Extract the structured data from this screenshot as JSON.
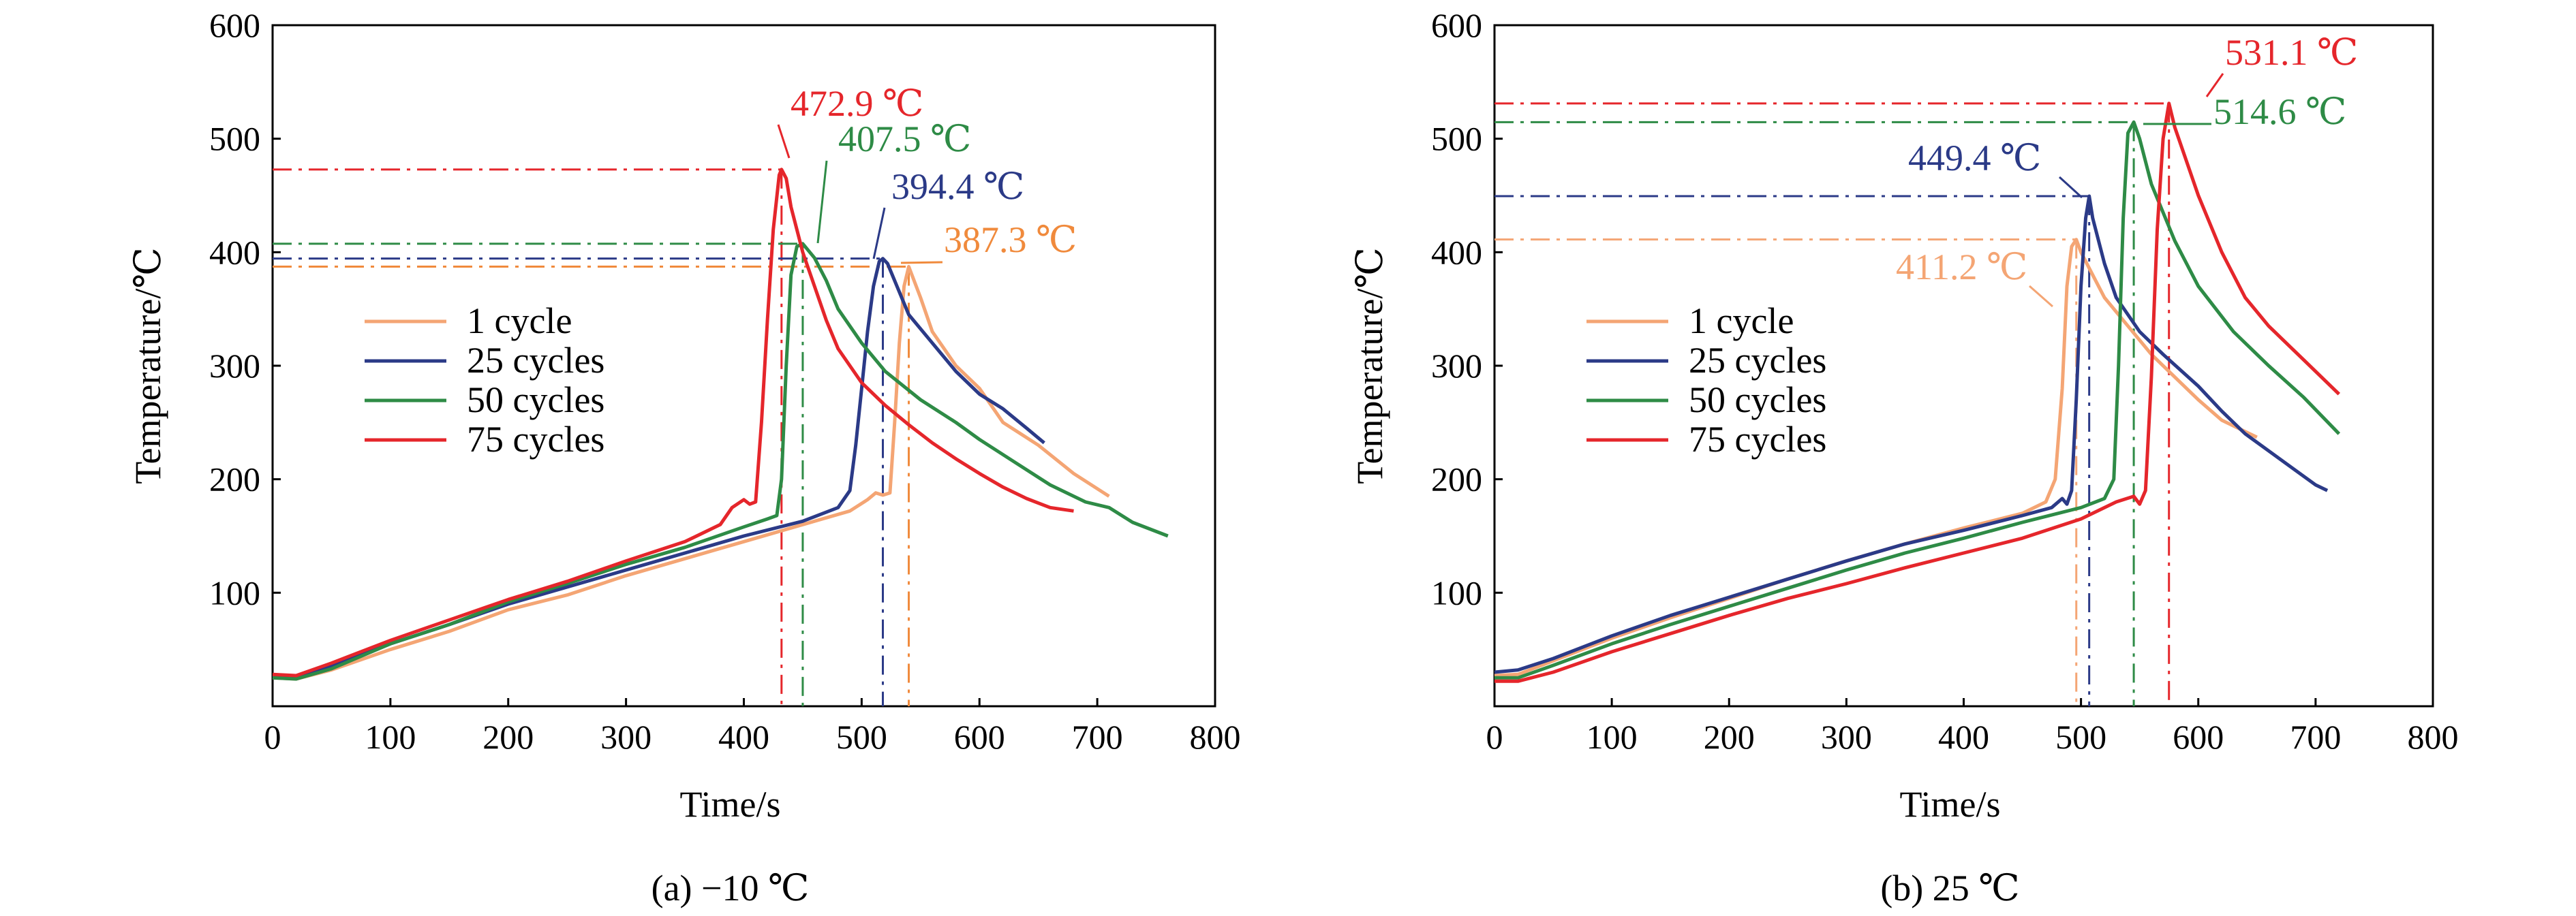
{
  "colors": {
    "cycle_1": "#F4A574",
    "cycle_25": "#2B3A87",
    "cycle_50": "#2E8B46",
    "cycle_75": "#E5262B",
    "label_1cycle_a": "#F08A3C",
    "frame": "#000000"
  },
  "chart_data": [
    {
      "type": "line",
      "title": "",
      "caption": "(a) −10 ℃",
      "xlabel": "Time/s",
      "ylabel": "Temperature/℃",
      "xlim": [
        0,
        800
      ],
      "ylim": [
        0,
        600
      ],
      "xticks": [
        "0",
        "100",
        "200",
        "300",
        "400",
        "500",
        "600",
        "700",
        "800"
      ],
      "yticks": [
        "100",
        "200",
        "300",
        "400",
        "500",
        "600"
      ],
      "legend_position": "left-middle",
      "series": [
        {
          "name": "1 cycle",
          "color": "#F4A574",
          "x": [
            0,
            20,
            50,
            100,
            150,
            200,
            250,
            300,
            350,
            400,
            450,
            490,
            505,
            512,
            518,
            524,
            528,
            532,
            536,
            540,
            550,
            560,
            580,
            600,
            620,
            650,
            680,
            710
          ],
          "y": [
            25,
            24,
            32,
            50,
            66,
            85,
            98,
            115,
            130,
            145,
            160,
            172,
            182,
            188,
            186,
            188,
            250,
            320,
            370,
            387.3,
            360,
            330,
            300,
            280,
            250,
            230,
            205,
            185
          ]
        },
        {
          "name": "25 cycles",
          "color": "#2B3A87",
          "x": [
            0,
            20,
            50,
            100,
            150,
            200,
            250,
            300,
            350,
            400,
            450,
            480,
            490,
            495,
            500,
            505,
            510,
            515,
            518,
            522,
            530,
            540,
            560,
            580,
            600,
            620,
            640,
            655
          ],
          "y": [
            27,
            26,
            35,
            55,
            72,
            90,
            105,
            120,
            135,
            150,
            163,
            175,
            190,
            230,
            280,
            330,
            370,
            392,
            394.4,
            390,
            370,
            345,
            320,
            295,
            275,
            262,
            245,
            232
          ]
        },
        {
          "name": "50 cycles",
          "color": "#2E8B46",
          "x": [
            0,
            20,
            50,
            100,
            150,
            200,
            250,
            300,
            350,
            400,
            420,
            428,
            432,
            436,
            440,
            445,
            450,
            460,
            470,
            480,
            500,
            520,
            550,
            580,
            600,
            630,
            660,
            690,
            710,
            730,
            760
          ],
          "y": [
            25,
            24,
            33,
            55,
            72,
            92,
            108,
            125,
            140,
            158,
            165,
            168,
            200,
            300,
            380,
            405,
            407.5,
            395,
            375,
            350,
            320,
            295,
            270,
            250,
            235,
            215,
            195,
            180,
            175,
            162,
            150
          ]
        },
        {
          "name": "75 cycles",
          "color": "#E5262B",
          "x": [
            0,
            20,
            50,
            100,
            150,
            200,
            250,
            300,
            350,
            380,
            390,
            400,
            405,
            410,
            415,
            420,
            425,
            430,
            432,
            436,
            440,
            445,
            450,
            460,
            470,
            480,
            500,
            520,
            540,
            560,
            580,
            600,
            620,
            640,
            660,
            680
          ],
          "y": [
            28,
            27,
            38,
            58,
            76,
            94,
            110,
            128,
            145,
            160,
            175,
            182,
            178,
            180,
            250,
            340,
            420,
            468,
            472.9,
            465,
            440,
            420,
            400,
            370,
            340,
            315,
            285,
            265,
            248,
            232,
            218,
            205,
            193,
            183,
            175,
            172
          ]
        }
      ],
      "annotations": [
        {
          "text": "472.9 ℃",
          "x": 432,
          "y": 472.9,
          "color": "#E5262B"
        },
        {
          "text": "407.5 ℃",
          "x": 450,
          "y": 407.5,
          "color": "#2E8B46"
        },
        {
          "text": "394.4 ℃",
          "x": 518,
          "y": 394.4,
          "color": "#2B3A87"
        },
        {
          "text": "387.3 ℃",
          "x": 540,
          "y": 387.3,
          "color": "#F08A3C"
        }
      ]
    },
    {
      "type": "line",
      "title": "",
      "caption": "(b) 25 ℃",
      "xlabel": "Time/s",
      "ylabel": "Temperature/℃",
      "xlim": [
        0,
        800
      ],
      "ylim": [
        0,
        600
      ],
      "xticks": [
        "0",
        "100",
        "200",
        "300",
        "400",
        "500",
        "600",
        "700",
        "800"
      ],
      "yticks": [
        "100",
        "200",
        "300",
        "400",
        "500",
        "600"
      ],
      "legend_position": "left-middle",
      "series": [
        {
          "name": "1 cycle",
          "color": "#F4A574",
          "x": [
            0,
            20,
            50,
            100,
            150,
            200,
            250,
            300,
            350,
            400,
            450,
            470,
            478,
            484,
            488,
            492,
            496,
            500,
            510,
            520,
            540,
            560,
            580,
            600,
            620,
            650
          ],
          "y": [
            27,
            28,
            40,
            60,
            78,
            95,
            112,
            128,
            143,
            157,
            170,
            180,
            200,
            280,
            370,
            405,
            411.2,
            400,
            380,
            360,
            335,
            310,
            290,
            270,
            252,
            237
          ]
        },
        {
          "name": "25 cycles",
          "color": "#2B3A87",
          "x": [
            0,
            20,
            50,
            100,
            150,
            200,
            250,
            300,
            350,
            400,
            450,
            475,
            484,
            488,
            492,
            496,
            500,
            504,
            507,
            510,
            520,
            530,
            550,
            570,
            600,
            620,
            640,
            660,
            680,
            700,
            710
          ],
          "y": [
            30,
            32,
            42,
            62,
            80,
            96,
            112,
            128,
            143,
            155,
            168,
            175,
            183,
            178,
            190,
            270,
            370,
            430,
            449.4,
            430,
            390,
            360,
            330,
            310,
            282,
            260,
            240,
            225,
            210,
            195,
            190
          ]
        },
        {
          "name": "50 cycles",
          "color": "#2E8B46",
          "x": [
            0,
            20,
            50,
            100,
            150,
            200,
            250,
            300,
            350,
            400,
            450,
            500,
            520,
            528,
            532,
            536,
            540,
            545,
            550,
            560,
            580,
            600,
            630,
            660,
            690,
            720
          ],
          "y": [
            25,
            25,
            36,
            55,
            72,
            88,
            104,
            120,
            135,
            148,
            162,
            175,
            183,
            200,
            300,
            430,
            505,
            514.6,
            500,
            460,
            410,
            370,
            330,
            300,
            272,
            240
          ]
        },
        {
          "name": "75 cycles",
          "color": "#E5262B",
          "x": [
            0,
            20,
            50,
            100,
            150,
            200,
            250,
            300,
            350,
            400,
            450,
            500,
            530,
            545,
            550,
            555,
            560,
            565,
            570,
            575,
            580,
            600,
            620,
            640,
            660,
            690,
            720
          ],
          "y": [
            22,
            22,
            30,
            48,
            64,
            80,
            95,
            108,
            122,
            135,
            148,
            165,
            180,
            185,
            178,
            190,
            290,
            420,
            500,
            531.1,
            510,
            450,
            400,
            360,
            335,
            305,
            275
          ]
        }
      ],
      "annotations": [
        {
          "text": "531.1 ℃",
          "x": 575,
          "y": 531.1,
          "color": "#E5262B"
        },
        {
          "text": "514.6 ℃",
          "x": 545,
          "y": 514.6,
          "color": "#2E8B46"
        },
        {
          "text": "449.4 ℃",
          "x": 507,
          "y": 449.4,
          "color": "#2B3A87"
        },
        {
          "text": "411.2 ℃",
          "x": 496,
          "y": 411.2,
          "color": "#F4A574"
        }
      ]
    }
  ]
}
